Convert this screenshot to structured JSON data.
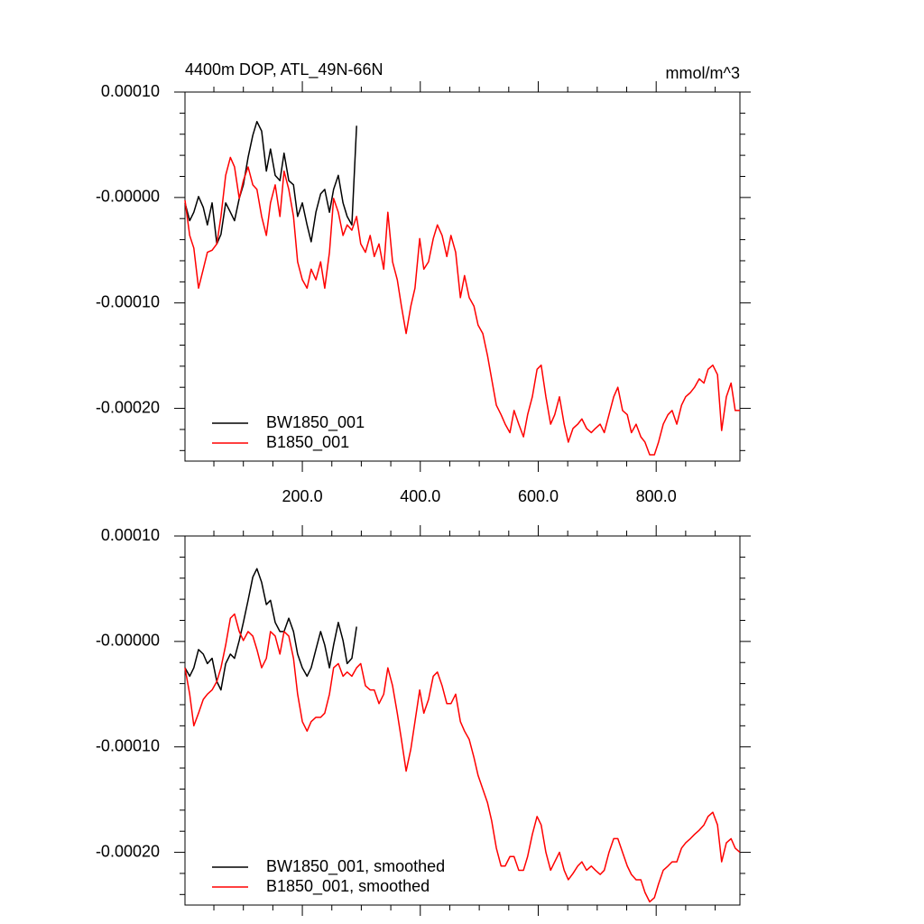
{
  "chart_data": [
    {
      "type": "line",
      "title": "4400m DOP, ATL_49N-66N",
      "units": "mmol/m^3",
      "xlim": [
        1,
        942
      ],
      "ylim": [
        -0.00025,
        0.0001
      ],
      "xticks": [
        {
          "value": 200,
          "label": "200.0"
        },
        {
          "value": 400,
          "label": "400.0"
        },
        {
          "value": 600,
          "label": "600.0"
        },
        {
          "value": 800,
          "label": "800.0"
        }
      ],
      "yticks": [
        {
          "value": 0.0001,
          "label": "0.00010"
        },
        {
          "value": 0,
          "label": "-0.00000"
        },
        {
          "value": -0.0001,
          "label": "-0.00010"
        },
        {
          "value": -0.0002,
          "label": "-0.00020"
        }
      ],
      "legend": "lower left",
      "x": [
        1,
        9,
        16,
        24,
        32,
        39,
        47,
        55,
        62,
        70,
        78,
        85,
        93,
        100,
        108,
        116,
        123,
        131,
        139,
        146,
        154,
        162,
        169,
        177,
        185,
        192,
        200,
        208,
        215,
        223,
        231,
        238,
        246,
        253,
        261,
        269,
        276,
        284,
        292,
        299,
        307,
        315,
        322,
        330,
        338,
        345,
        353,
        361,
        368,
        376,
        384,
        391,
        399,
        406,
        414,
        422,
        429,
        437,
        445,
        452,
        460,
        468,
        475,
        483,
        491,
        498,
        506,
        514,
        521,
        529,
        537,
        544,
        552,
        559,
        567,
        575,
        582,
        590,
        598,
        605,
        613,
        621,
        628,
        636,
        644,
        651,
        659,
        667,
        674,
        682,
        690,
        697,
        705,
        712,
        720,
        728,
        735,
        743,
        751,
        758,
        766,
        774,
        781,
        789,
        797,
        804,
        812,
        820,
        827,
        835,
        843,
        850,
        858,
        865,
        873,
        881,
        888,
        896,
        904,
        911,
        919,
        927,
        934,
        942
      ],
      "series": [
        {
          "name": "BW1850_001",
          "color": "#000000",
          "values": [
            -5.1e-06,
            -2.2e-05,
            -1.4e-05,
            9e-07,
            -9.4e-06,
            -2.6e-05,
            -5.1e-06,
            -4.4e-05,
            -3.5e-05,
            -5.1e-06,
            -1.4e-05,
            -2.2e-05,
            -9e-07,
            1.2e-05,
            3.8e-05,
            5.9e-05,
            7.2e-05,
            6.3e-05,
            2.5e-05,
            4.6e-05,
            2.1e-05,
            1.6e-05,
            4.2e-05,
            1.6e-05,
            1.2e-05,
            -1.8e-05,
            -5.1e-06,
            -2.6e-05,
            -4.2e-05,
            -1.4e-05,
            3.4e-06,
            7.7e-06,
            -1.4e-05,
            7.7e-06,
            2.1e-05,
            -5.1e-06,
            -1.8e-05,
            -2.6e-05,
            6.8e-05,
            null,
            null,
            null,
            null,
            null,
            null,
            null,
            null,
            null,
            null,
            null,
            null,
            null,
            null,
            null,
            null,
            null,
            null,
            null,
            null,
            null,
            null,
            null,
            null,
            null,
            null,
            null,
            null,
            null,
            null,
            null,
            null,
            null,
            null,
            null,
            null,
            null,
            null,
            null,
            null,
            null,
            null,
            null,
            null,
            null,
            null,
            null,
            null,
            null,
            null,
            null,
            null,
            null,
            null,
            null,
            null,
            null,
            null,
            null,
            null,
            null,
            null,
            null,
            null,
            null,
            null,
            null,
            null,
            null,
            null,
            null,
            null,
            null,
            null,
            null,
            null,
            null,
            null,
            null,
            null,
            null,
            null,
            null,
            null,
            null
          ]
        },
        {
          "name": "B1850_001",
          "color": "#ff0000",
          "values": [
            -2.6e-06,
            -3.6e-05,
            -4.8e-05,
            -8.6e-05,
            -6.8e-05,
            -5.2e-05,
            -5e-05,
            -4.4e-05,
            -1.8e-05,
            2.1e-05,
            3.8e-05,
            2.9e-05,
            -9e-07,
            1.6e-05,
            2.9e-05,
            1.2e-05,
            7.7e-06,
            -1.8e-05,
            -3.6e-05,
            -5.1e-06,
            1.2e-05,
            -1.8e-05,
            2.5e-05,
            7.7e-06,
            -1.8e-05,
            -6.1e-05,
            -7.8e-05,
            -8.6e-05,
            -6.8e-05,
            -7.8e-05,
            -6.1e-05,
            -8.6e-05,
            -5.2e-05,
            -9e-07,
            -1.4e-05,
            -3.6e-05,
            -2.6e-05,
            -3.1e-05,
            -1.8e-05,
            -4.4e-05,
            -5.2e-05,
            -3.6e-05,
            -5.6e-05,
            -4.4e-05,
            -6.8e-05,
            -1.4e-05,
            -6.1e-05,
            -7.8e-05,
            -0.000103,
            -0.000129,
            -0.000103,
            -8.6e-05,
            -3.9e-05,
            -6.8e-05,
            -6.1e-05,
            -3.9e-05,
            -2.6e-05,
            -3.6e-05,
            -5.6e-05,
            -3.6e-05,
            -5.2e-05,
            -9.5e-05,
            -7.4e-05,
            -9.5e-05,
            -0.000103,
            -0.000121,
            -0.000129,
            -0.00015,
            -0.000172,
            -0.000197,
            -0.000206,
            -0.000215,
            -0.000223,
            -0.000202,
            -0.000215,
            -0.000227,
            -0.000206,
            -0.000189,
            -0.000163,
            -0.000159,
            -0.000189,
            -0.000215,
            -0.000206,
            -0.000189,
            -0.000215,
            -0.000232,
            -0.000219,
            -0.000215,
            -0.00021,
            -0.000219,
            -0.000223,
            -0.000219,
            -0.000215,
            -0.000223,
            -0.000206,
            -0.000189,
            -0.00018,
            -0.000202,
            -0.000206,
            -0.000223,
            -0.000215,
            -0.000227,
            -0.000232,
            -0.000244,
            -0.000244,
            -0.000232,
            -0.000215,
            -0.000206,
            -0.000202,
            -0.000215,
            -0.000197,
            -0.000189,
            -0.000185,
            -0.00018,
            -0.000172,
            -0.000176,
            -0.000163,
            -0.000159,
            -0.000168,
            -0.000221,
            -0.000189,
            -0.000176,
            -0.000202,
            -0.000202
          ]
        }
      ]
    },
    {
      "type": "line",
      "xlim": [
        1,
        942
      ],
      "ylim": [
        -0.00025,
        0.0001
      ],
      "xticks": [
        200,
        400,
        600,
        800
      ],
      "yticks": [
        {
          "value": 0.0001,
          "label": "0.00010"
        },
        {
          "value": 0,
          "label": "-0.00000"
        },
        {
          "value": -0.0001,
          "label": "-0.00010"
        },
        {
          "value": -0.0002,
          "label": "-0.00020"
        }
      ],
      "legend": "lower left",
      "x": [
        1,
        9,
        16,
        24,
        32,
        39,
        47,
        55,
        62,
        70,
        78,
        85,
        93,
        100,
        108,
        116,
        123,
        131,
        139,
        146,
        154,
        162,
        169,
        177,
        185,
        192,
        200,
        208,
        215,
        223,
        231,
        238,
        246,
        253,
        261,
        269,
        276,
        284,
        292,
        299,
        307,
        315,
        322,
        330,
        338,
        345,
        353,
        361,
        368,
        376,
        384,
        391,
        399,
        406,
        414,
        422,
        429,
        437,
        445,
        452,
        460,
        468,
        475,
        483,
        491,
        498,
        506,
        514,
        521,
        529,
        537,
        544,
        552,
        559,
        567,
        575,
        582,
        590,
        598,
        605,
        613,
        621,
        628,
        636,
        644,
        651,
        659,
        667,
        674,
        682,
        690,
        697,
        705,
        712,
        720,
        728,
        735,
        743,
        751,
        758,
        766,
        774,
        781,
        789,
        797,
        804,
        812,
        820,
        827,
        835,
        843,
        850,
        858,
        865,
        873,
        881,
        888,
        896,
        904,
        911,
        919,
        927,
        934,
        942
      ],
      "series": [
        {
          "name": "BW1850_001, smoothed",
          "color": "#000000",
          "values": [
            -2.5e-05,
            -3.3e-05,
            -2.5e-05,
            -7.7e-06,
            -1.2e-05,
            -2.1e-05,
            -1.6e-05,
            -3.8e-05,
            -4.6e-05,
            -2.1e-05,
            -1.2e-05,
            -1.6e-05,
            9e-07,
            1.8e-05,
            3.9e-05,
            6.1e-05,
            6.9e-05,
            5.6e-05,
            3.5e-05,
            3.9e-05,
            1.8e-05,
            9.4e-06,
            9.4e-06,
            2.2e-05,
            9.4e-06,
            -1.2e-05,
            -2.5e-05,
            -3.3e-05,
            -2.5e-05,
            -7.7e-06,
            9.4e-06,
            -3.4e-06,
            -2.5e-05,
            -3.4e-06,
            1.8e-05,
            9e-07,
            -2.1e-05,
            -1.6e-05,
            1.4e-05,
            null,
            null,
            null,
            null,
            null,
            null,
            null,
            null,
            null,
            null,
            null,
            null,
            null,
            null,
            null,
            null,
            null,
            null,
            null,
            null,
            null,
            null,
            null,
            null,
            null,
            null,
            null,
            null,
            null,
            null,
            null,
            null,
            null,
            null,
            null,
            null,
            null,
            null,
            null,
            null,
            null,
            null,
            null,
            null,
            null,
            null,
            null,
            null,
            null,
            null,
            null,
            null,
            null,
            null,
            null,
            null,
            null,
            null,
            null,
            null,
            null,
            null,
            null,
            null,
            null,
            null,
            null,
            null,
            null,
            null,
            null,
            null,
            null,
            null,
            null,
            null,
            null,
            null,
            null,
            null,
            null,
            null,
            null,
            null,
            null
          ]
        },
        {
          "name": "B1850_001, smoothed",
          "color": "#ff0000",
          "values": [
            -2.5e-05,
            -5e-05,
            -8e-05,
            -6.8e-05,
            -5.5e-05,
            -5e-05,
            -4.6e-05,
            -3.8e-05,
            -2.5e-05,
            -3.4e-06,
            2.2e-05,
            2.6e-05,
            9.4e-06,
            9e-07,
            9.4e-06,
            5.1e-06,
            -7.7e-06,
            -2.5e-05,
            -1.6e-05,
            9.4e-06,
            5.1e-06,
            -1.2e-05,
            9.4e-06,
            5.1e-06,
            -1.6e-05,
            -5e-05,
            -7.6e-05,
            -8.5e-05,
            -7.6e-05,
            -7.2e-05,
            -7.2e-05,
            -6.8e-05,
            -5e-05,
            -2.5e-05,
            -2.1e-05,
            -3.3e-05,
            -2.9e-05,
            -3.3e-05,
            -2.5e-05,
            -2.1e-05,
            -4.2e-05,
            -4.6e-05,
            -4.6e-05,
            -5.9e-05,
            -5e-05,
            -2.5e-05,
            -4.2e-05,
            -6.8e-05,
            -9.3e-05,
            -0.000123,
            -0.000102,
            -7.6e-05,
            -4.6e-05,
            -6.8e-05,
            -5.5e-05,
            -3.3e-05,
            -2.9e-05,
            -4.2e-05,
            -5.9e-05,
            -5.9e-05,
            -5e-05,
            -7.6e-05,
            -8.5e-05,
            -9.3e-05,
            -0.00011,
            -0.000127,
            -0.00014,
            -0.000153,
            -0.00017,
            -0.000196,
            -0.000213,
            -0.000213,
            -0.000204,
            -0.000204,
            -0.000217,
            -0.000217,
            -0.000204,
            -0.000183,
            -0.000166,
            -0.000174,
            -0.0002,
            -0.000217,
            -0.000209,
            -0.0002,
            -0.000217,
            -0.000226,
            -0.00022,
            -0.000213,
            -0.000209,
            -0.000217,
            -0.000213,
            -0.000217,
            -0.000221,
            -0.000217,
            -0.0002,
            -0.000187,
            -0.000187,
            -0.0002,
            -0.000213,
            -0.000221,
            -0.000226,
            -0.000226,
            -0.000238,
            -0.000247,
            -0.000243,
            -0.00023,
            -0.000217,
            -0.000213,
            -0.000209,
            -0.000209,
            -0.000196,
            -0.000191,
            -0.000187,
            -0.000183,
            -0.000179,
            -0.000174,
            -0.000166,
            -0.000162,
            -0.000174,
            -0.000209,
            -0.000191,
            -0.000187,
            -0.000196,
            -0.0002
          ]
        }
      ]
    }
  ]
}
